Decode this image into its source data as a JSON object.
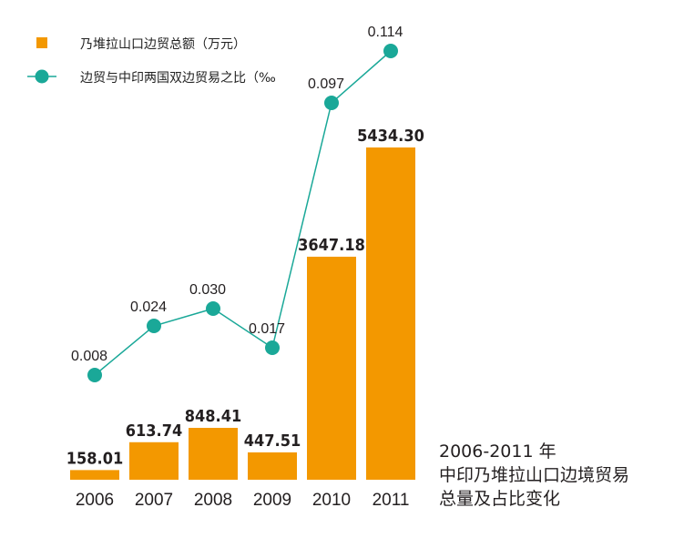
{
  "chart_data": {
    "type": "bar",
    "categories": [
      "2006",
      "2007",
      "2008",
      "2009",
      "2010",
      "2011"
    ],
    "series": [
      {
        "name": "乃堆拉山口边贸总额（万元）",
        "type": "bar",
        "values": [
          158.01,
          613.74,
          848.41,
          447.51,
          3647.18,
          5434.3
        ],
        "labels": [
          "158.01",
          "613.74",
          "848.41",
          "447.51",
          "3647.18",
          "5434.30"
        ]
      },
      {
        "name": "边贸与中印两国双边贸易之比（‰",
        "type": "line",
        "values": [
          0.008,
          0.024,
          0.03,
          0.017,
          0.097,
          0.114
        ],
        "labels": [
          "0.008",
          "0.024",
          "0.030",
          "0.017",
          "0.097",
          "0.114"
        ]
      }
    ],
    "colors": {
      "bar": "#f39800",
      "line": "#1aa898",
      "text": "#231f20"
    },
    "caption_lines": [
      "2006-2011 年",
      "中印乃堆拉山口边境贸易",
      "总量及占比变化"
    ]
  }
}
